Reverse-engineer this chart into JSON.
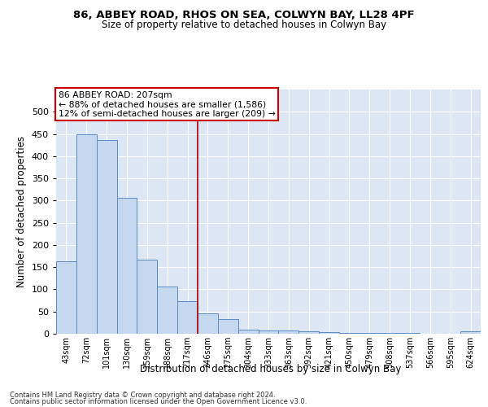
{
  "title1": "86, ABBEY ROAD, RHOS ON SEA, COLWYN BAY, LL28 4PF",
  "title2": "Size of property relative to detached houses in Colwyn Bay",
  "xlabel": "Distribution of detached houses by size in Colwyn Bay",
  "ylabel": "Number of detached properties",
  "categories": [
    "43sqm",
    "72sqm",
    "101sqm",
    "130sqm",
    "159sqm",
    "188sqm",
    "217sqm",
    "246sqm",
    "275sqm",
    "304sqm",
    "333sqm",
    "363sqm",
    "392sqm",
    "421sqm",
    "450sqm",
    "479sqm",
    "508sqm",
    "537sqm",
    "566sqm",
    "595sqm",
    "624sqm"
  ],
  "values": [
    163,
    450,
    437,
    307,
    167,
    106,
    74,
    45,
    33,
    10,
    7,
    7,
    5,
    3,
    1,
    1,
    1,
    1,
    0,
    0,
    5
  ],
  "bar_color": "#c5d8f0",
  "bar_edge_color": "#5b8ac5",
  "vline_x_index": 6.5,
  "vline_color": "#aa0000",
  "annotation_title": "86 ABBEY ROAD: 207sqm",
  "annotation_line1": "← 88% of detached houses are smaller (1,586)",
  "annotation_line2": "12% of semi-detached houses are larger (209) →",
  "annotation_box_color": "#ffffff",
  "annotation_box_edge": "#cc0000",
  "ylim_max": 550,
  "ytick_max": 500,
  "ytick_step": 50,
  "bg_color": "#dce6f5",
  "grid_color": "#ffffff",
  "footer1": "Contains HM Land Registry data © Crown copyright and database right 2024.",
  "footer2": "Contains public sector information licensed under the Open Government Licence v3.0."
}
